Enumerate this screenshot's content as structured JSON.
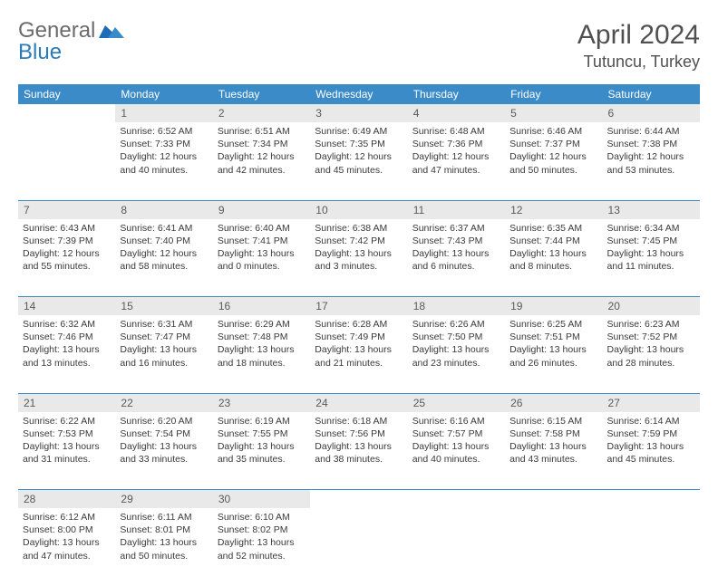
{
  "brand": {
    "part1": "General",
    "part2": "Blue"
  },
  "month": "April 2024",
  "location": "Tutuncu, Turkey",
  "colors": {
    "header_bg": "#3b8bc9",
    "header_text": "#ffffff",
    "daynum_bg": "#e9e9e9",
    "daynum_text": "#5a5a5a",
    "border": "#3b8bc9",
    "body_text": "#3a3a3a",
    "title_text": "#505050",
    "logo_gray": "#6b6b6b",
    "logo_blue": "#2a7bb8"
  },
  "daynames": [
    "Sunday",
    "Monday",
    "Tuesday",
    "Wednesday",
    "Thursday",
    "Friday",
    "Saturday"
  ],
  "weeks": [
    [
      null,
      {
        "n": "1",
        "sunrise": "6:52 AM",
        "sunset": "7:33 PM",
        "day_h": 12,
        "day_m": 40
      },
      {
        "n": "2",
        "sunrise": "6:51 AM",
        "sunset": "7:34 PM",
        "day_h": 12,
        "day_m": 42
      },
      {
        "n": "3",
        "sunrise": "6:49 AM",
        "sunset": "7:35 PM",
        "day_h": 12,
        "day_m": 45
      },
      {
        "n": "4",
        "sunrise": "6:48 AM",
        "sunset": "7:36 PM",
        "day_h": 12,
        "day_m": 47
      },
      {
        "n": "5",
        "sunrise": "6:46 AM",
        "sunset": "7:37 PM",
        "day_h": 12,
        "day_m": 50
      },
      {
        "n": "6",
        "sunrise": "6:44 AM",
        "sunset": "7:38 PM",
        "day_h": 12,
        "day_m": 53
      }
    ],
    [
      {
        "n": "7",
        "sunrise": "6:43 AM",
        "sunset": "7:39 PM",
        "day_h": 12,
        "day_m": 55
      },
      {
        "n": "8",
        "sunrise": "6:41 AM",
        "sunset": "7:40 PM",
        "day_h": 12,
        "day_m": 58
      },
      {
        "n": "9",
        "sunrise": "6:40 AM",
        "sunset": "7:41 PM",
        "day_h": 13,
        "day_m": 0
      },
      {
        "n": "10",
        "sunrise": "6:38 AM",
        "sunset": "7:42 PM",
        "day_h": 13,
        "day_m": 3
      },
      {
        "n": "11",
        "sunrise": "6:37 AM",
        "sunset": "7:43 PM",
        "day_h": 13,
        "day_m": 6
      },
      {
        "n": "12",
        "sunrise": "6:35 AM",
        "sunset": "7:44 PM",
        "day_h": 13,
        "day_m": 8
      },
      {
        "n": "13",
        "sunrise": "6:34 AM",
        "sunset": "7:45 PM",
        "day_h": 13,
        "day_m": 11
      }
    ],
    [
      {
        "n": "14",
        "sunrise": "6:32 AM",
        "sunset": "7:46 PM",
        "day_h": 13,
        "day_m": 13
      },
      {
        "n": "15",
        "sunrise": "6:31 AM",
        "sunset": "7:47 PM",
        "day_h": 13,
        "day_m": 16
      },
      {
        "n": "16",
        "sunrise": "6:29 AM",
        "sunset": "7:48 PM",
        "day_h": 13,
        "day_m": 18
      },
      {
        "n": "17",
        "sunrise": "6:28 AM",
        "sunset": "7:49 PM",
        "day_h": 13,
        "day_m": 21
      },
      {
        "n": "18",
        "sunrise": "6:26 AM",
        "sunset": "7:50 PM",
        "day_h": 13,
        "day_m": 23
      },
      {
        "n": "19",
        "sunrise": "6:25 AM",
        "sunset": "7:51 PM",
        "day_h": 13,
        "day_m": 26
      },
      {
        "n": "20",
        "sunrise": "6:23 AM",
        "sunset": "7:52 PM",
        "day_h": 13,
        "day_m": 28
      }
    ],
    [
      {
        "n": "21",
        "sunrise": "6:22 AM",
        "sunset": "7:53 PM",
        "day_h": 13,
        "day_m": 31
      },
      {
        "n": "22",
        "sunrise": "6:20 AM",
        "sunset": "7:54 PM",
        "day_h": 13,
        "day_m": 33
      },
      {
        "n": "23",
        "sunrise": "6:19 AM",
        "sunset": "7:55 PM",
        "day_h": 13,
        "day_m": 35
      },
      {
        "n": "24",
        "sunrise": "6:18 AM",
        "sunset": "7:56 PM",
        "day_h": 13,
        "day_m": 38
      },
      {
        "n": "25",
        "sunrise": "6:16 AM",
        "sunset": "7:57 PM",
        "day_h": 13,
        "day_m": 40
      },
      {
        "n": "26",
        "sunrise": "6:15 AM",
        "sunset": "7:58 PM",
        "day_h": 13,
        "day_m": 43
      },
      {
        "n": "27",
        "sunrise": "6:14 AM",
        "sunset": "7:59 PM",
        "day_h": 13,
        "day_m": 45
      }
    ],
    [
      {
        "n": "28",
        "sunrise": "6:12 AM",
        "sunset": "8:00 PM",
        "day_h": 13,
        "day_m": 47
      },
      {
        "n": "29",
        "sunrise": "6:11 AM",
        "sunset": "8:01 PM",
        "day_h": 13,
        "day_m": 50
      },
      {
        "n": "30",
        "sunrise": "6:10 AM",
        "sunset": "8:02 PM",
        "day_h": 13,
        "day_m": 52
      },
      null,
      null,
      null,
      null
    ]
  ],
  "labels": {
    "sunrise_prefix": "Sunrise: ",
    "sunset_prefix": "Sunset: ",
    "daylight_prefix": "Daylight: ",
    "hours_word": " hours",
    "and_word": "and ",
    "minutes_word": " minutes."
  }
}
